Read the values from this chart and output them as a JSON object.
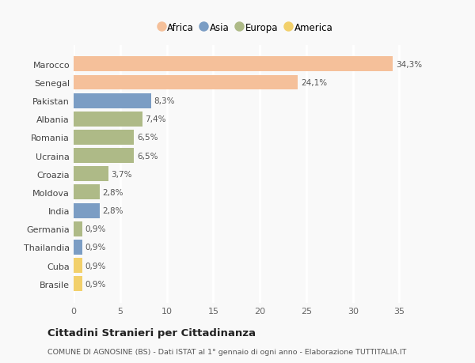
{
  "countries": [
    "Brasile",
    "Cuba",
    "Thailandia",
    "Germania",
    "India",
    "Moldova",
    "Croazia",
    "Ucraina",
    "Romania",
    "Albania",
    "Pakistan",
    "Senegal",
    "Marocco"
  ],
  "values": [
    0.9,
    0.9,
    0.9,
    0.9,
    2.8,
    2.8,
    3.7,
    6.5,
    6.5,
    7.4,
    8.3,
    24.1,
    34.3
  ],
  "continents": [
    "America",
    "America",
    "Asia",
    "Europa",
    "Asia",
    "Europa",
    "Europa",
    "Europa",
    "Europa",
    "Europa",
    "Asia",
    "Africa",
    "Africa"
  ],
  "colors": {
    "Africa": "#F5C09A",
    "Asia": "#7B9DC4",
    "Europa": "#AEBA87",
    "America": "#F2D06B"
  },
  "legend_order": [
    "Africa",
    "Asia",
    "Europa",
    "America"
  ],
  "xlim": [
    0,
    37
  ],
  "xticks": [
    0,
    5,
    10,
    15,
    20,
    25,
    30,
    35
  ],
  "title": "Cittadini Stranieri per Cittadinanza",
  "subtitle": "COMUNE DI AGNOSINE (BS) - Dati ISTAT al 1° gennaio di ogni anno - Elaborazione TUTTITALIA.IT",
  "background_color": "#f9f9f9",
  "grid_color": "#ffffff",
  "bar_height": 0.82
}
